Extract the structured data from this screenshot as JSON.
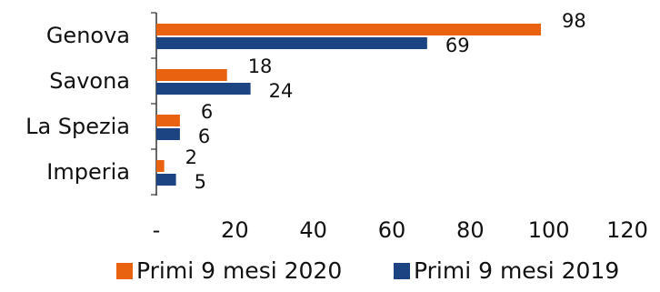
{
  "colors": {
    "series_2020": "#E8620F",
    "series_2019": "#1D4482",
    "axis": "#333333",
    "text": "#111111"
  },
  "chart_data": {
    "type": "bar",
    "orientation": "horizontal",
    "categories": [
      "Genova",
      "Savona",
      "La Spezia",
      "Imperia"
    ],
    "series": [
      {
        "name": "Primi 9 mesi 2020",
        "values": [
          98,
          18,
          6,
          2
        ],
        "labels": [
          "98",
          "18",
          "6",
          "2"
        ]
      },
      {
        "name": "Primi 9 mesi 2019",
        "values": [
          69,
          24,
          6,
          5
        ],
        "labels": [
          "69",
          "24",
          "6",
          "5"
        ]
      }
    ],
    "xlim": [
      0,
      120
    ],
    "ticks": [
      0,
      20,
      40,
      60,
      80,
      100,
      120
    ],
    "tick_labels": [
      "-",
      "20",
      "40",
      "60",
      "80",
      "100",
      "120"
    ],
    "grid": false,
    "legend_position": "bottom",
    "title": "",
    "xlabel": "",
    "ylabel": ""
  }
}
